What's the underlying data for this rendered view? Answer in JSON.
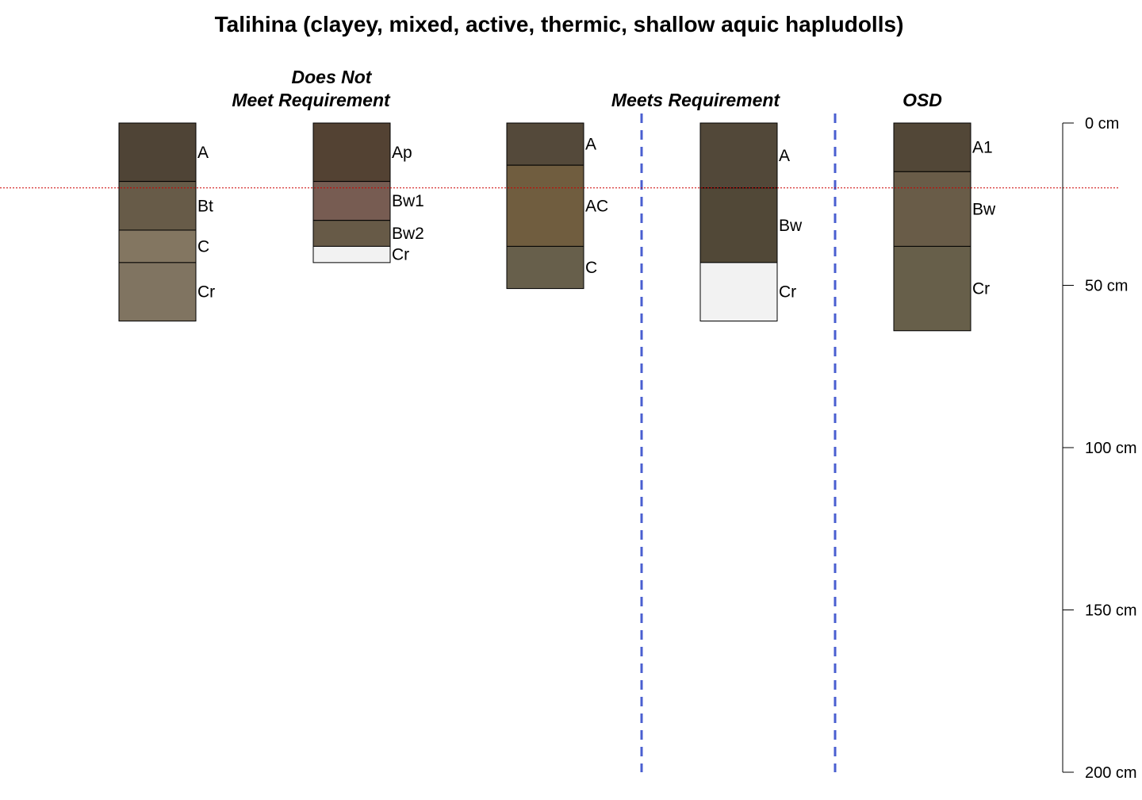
{
  "title": "Talihina (clayey, mixed, active, thermic, shallow aquic hapludolls)",
  "groups": {
    "does_not_meet_line1": "Does Not",
    "does_not_meet_line2": "Meet Requirement",
    "meets": "Meets Requirement",
    "osd": "OSD"
  },
  "colors": {
    "border": "#000000",
    "reference_line": "#cc0000",
    "separator_line": "#4a5fd0"
  },
  "chart_data": {
    "type": "soil-profile-sketch",
    "depth_unit": "cm",
    "depth_axis": {
      "range": [
        0,
        200
      ],
      "ticks": [
        0,
        50,
        100,
        150,
        200
      ],
      "tick_labels": [
        "0 cm",
        "50 cm",
        "100 cm",
        "150 cm",
        "200 cm"
      ]
    },
    "reference_depth": 20,
    "separators_after_profile": [
      3,
      4
    ],
    "profiles": [
      {
        "horizons": [
          {
            "name": "A",
            "top": 0,
            "bottom": 18,
            "color": "#4f4436"
          },
          {
            "name": "Bt",
            "top": 18,
            "bottom": 33,
            "color": "#675b48"
          },
          {
            "name": "C",
            "top": 33,
            "bottom": 43,
            "color": "#837661"
          },
          {
            "name": "Cr",
            "top": 43,
            "bottom": 61,
            "color": "#807461"
          }
        ]
      },
      {
        "horizons": [
          {
            "name": "Ap",
            "top": 0,
            "bottom": 18,
            "color": "#534233"
          },
          {
            "name": "Bw1",
            "top": 18,
            "bottom": 30,
            "color": "#775c52"
          },
          {
            "name": "Bw2",
            "top": 30,
            "bottom": 38,
            "color": "#675a47"
          },
          {
            "name": "Cr",
            "top": 38,
            "bottom": 43,
            "color": "#f2f2f2"
          }
        ]
      },
      {
        "horizons": [
          {
            "name": "A",
            "top": 0,
            "bottom": 13,
            "color": "#54493a"
          },
          {
            "name": "AC",
            "top": 13,
            "bottom": 38,
            "color": "#705d3f"
          },
          {
            "name": "C",
            "top": 38,
            "bottom": 51,
            "color": "#675f4b"
          }
        ]
      },
      {
        "horizons": [
          {
            "name": "A",
            "top": 0,
            "bottom": 20,
            "color": "#524839"
          },
          {
            "name": "Bw",
            "top": 20,
            "bottom": 43,
            "color": "#514837"
          },
          {
            "name": "Cr",
            "top": 43,
            "bottom": 61,
            "color": "#f2f2f2"
          }
        ]
      },
      {
        "horizons": [
          {
            "name": "A1",
            "top": 0,
            "bottom": 15,
            "color": "#524737"
          },
          {
            "name": "Bw",
            "top": 15,
            "bottom": 38,
            "color": "#695c48"
          },
          {
            "name": "Cr",
            "top": 38,
            "bottom": 64,
            "color": "#675f4a"
          }
        ]
      }
    ]
  }
}
